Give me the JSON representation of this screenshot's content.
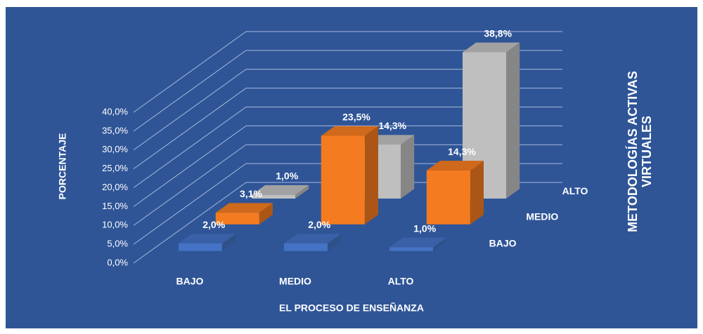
{
  "chart_data": {
    "type": "bar3d",
    "title_x": "EL PROCESO DE ENSEÑANZA",
    "title_y": "PORCENTAJE",
    "title_z": "METODOLOGÍAS ACTIVAS VIRTUALES",
    "categories": [
      "BAJO",
      "MEDIO",
      "ALTO"
    ],
    "series": [
      {
        "name": "BAJO",
        "color": "#4472c4",
        "values": [
          2.0,
          2.0,
          1.0
        ],
        "value_labels": [
          "2,0%",
          "2,0%",
          "1,0%"
        ]
      },
      {
        "name": "MEDIO",
        "color": "#f47b20",
        "values": [
          3.1,
          23.5,
          14.3
        ],
        "value_labels": [
          "3,1%",
          "23,5%",
          "14,3%"
        ]
      },
      {
        "name": "ALTO",
        "color": "#bfbfbf",
        "values": [
          1.0,
          14.3,
          38.8
        ],
        "value_labels": [
          "1,0%",
          "14,3%",
          "38,8%"
        ]
      }
    ],
    "ylim": [
      0,
      40
    ],
    "yticks": [
      {
        "value": 0,
        "label": "0,0%"
      },
      {
        "value": 5,
        "label": "5,0%"
      },
      {
        "value": 10,
        "label": "10,0%"
      },
      {
        "value": 15,
        "label": "15,0%"
      },
      {
        "value": 20,
        "label": "20,0%"
      },
      {
        "value": 25,
        "label": "25,0%"
      },
      {
        "value": 30,
        "label": "30,0%"
      },
      {
        "value": 35,
        "label": "35,0%"
      },
      {
        "value": 40,
        "label": "40,0%"
      }
    ],
    "grid": true
  }
}
